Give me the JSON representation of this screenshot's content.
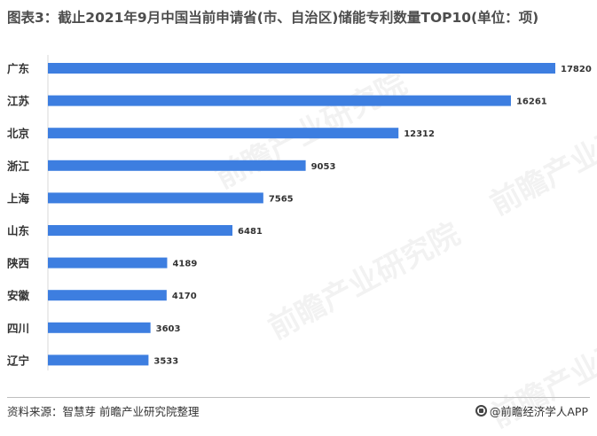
{
  "title": "图表3：截止2021年9月中国当前申请省(市、自治区)储能专利数量TOP10(单位：项)",
  "watermark_text": "前瞻产业研究院",
  "source": "资料来源：智慧芽 前瞻产业研究院整理",
  "brand": "@前瞻经济学人APP",
  "colors": {
    "bar": "#3d7ee0",
    "label": "#333333",
    "axis": "#d9d9d9"
  },
  "chart_data": {
    "type": "bar",
    "orientation": "horizontal",
    "categories": [
      "广东",
      "江苏",
      "北京",
      "浙江",
      "上海",
      "山东",
      "陕西",
      "安徽",
      "四川",
      "辽宁"
    ],
    "values": [
      17820,
      16261,
      12312,
      9053,
      7565,
      6481,
      4189,
      4170,
      3603,
      3533
    ],
    "xlim": [
      0,
      17820
    ],
    "grid": false,
    "legend": "none"
  }
}
